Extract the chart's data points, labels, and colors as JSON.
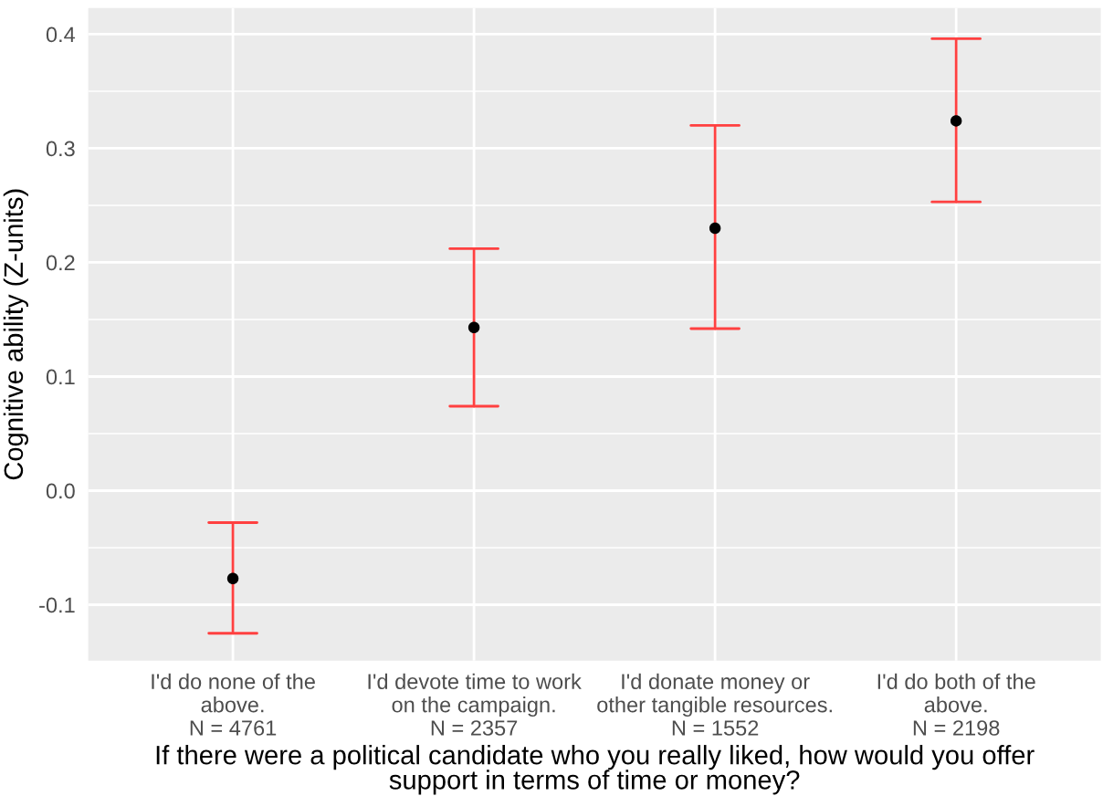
{
  "chart_data": {
    "type": "scatter",
    "xlabel": "If there were a political candidate who you really liked, how would you offer\nsupport in terms of time or money?",
    "ylabel": "Cognitive ability (Z-units)",
    "categories": [
      "I'd do none of the\nabove.\nN = 4761",
      "I'd devote time to work\non the campaign.\nN = 2357",
      "I'd donate money or\nother tangible resources.\nN = 1552",
      "I'd do both of the\nabove.\nN = 2198"
    ],
    "series": [
      {
        "color": "#000000",
        "values": [
          -0.077,
          0.143,
          0.23,
          0.324
        ],
        "errors": [
          [
            -0.125,
            -0.028
          ],
          [
            0.074,
            0.212
          ],
          [
            0.142,
            0.32
          ],
          [
            0.253,
            0.396
          ]
        ]
      }
    ],
    "ylim": [
      -0.149,
      0.423
    ],
    "yticks": [
      {
        "value": -0.1,
        "label": "-0.1"
      },
      {
        "value": -0.05,
        "label": null
      },
      {
        "value": 0.0,
        "label": "0.0"
      },
      {
        "value": 0.05,
        "label": null
      },
      {
        "value": 0.1,
        "label": "0.1"
      },
      {
        "value": 0.15,
        "label": null
      },
      {
        "value": 0.2,
        "label": "0.2"
      },
      {
        "value": 0.25,
        "label": null
      },
      {
        "value": 0.3,
        "label": "0.3"
      },
      {
        "value": 0.35,
        "label": null
      },
      {
        "value": 0.4,
        "label": "0.4"
      }
    ],
    "grid": true,
    "marker": "circle"
  }
}
